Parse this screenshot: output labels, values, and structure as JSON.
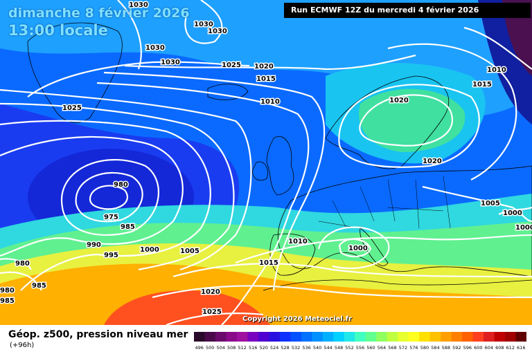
{
  "header": {
    "date": "dimanche 8 février 2026",
    "time": "13:00 locale",
    "run": "Run ECMWF 12Z du mercredi 4 février 2026"
  },
  "copyright": "Copyright 2026 Meteociel.fr",
  "legend": {
    "title": "Géop. z500, pression niveau mer",
    "subtitle": "(+96h)",
    "ticks": [
      "496",
      "500",
      "504",
      "508",
      "512",
      "516",
      "520",
      "524",
      "528",
      "532",
      "536",
      "540",
      "544",
      "548",
      "552",
      "556",
      "560",
      "564",
      "568",
      "572",
      "576",
      "580",
      "584",
      "588",
      "592",
      "596",
      "600",
      "604",
      "608",
      "612",
      "616"
    ],
    "colors": [
      "#2a0a2a",
      "#4a0a4a",
      "#6a0a6a",
      "#8a0a8a",
      "#a010a0",
      "#7a00c0",
      "#5000d0",
      "#2a10e0",
      "#1030ff",
      "#0050ff",
      "#0070ff",
      "#0090ff",
      "#00b0ff",
      "#00d0ff",
      "#20e8e8",
      "#40ffc0",
      "#60ff90",
      "#90ff60",
      "#c0ff40",
      "#e8ff30",
      "#ffff20",
      "#ffe000",
      "#ffc000",
      "#ffa000",
      "#ff8000",
      "#ff6000",
      "#ff4020",
      "#e02020",
      "#c00000",
      "#a00000",
      "#600000"
    ]
  },
  "map": {
    "isobars": [
      "1030",
      "1030",
      "1030",
      "1030",
      "1030",
      "1025",
      "1025",
      "1020",
      "1015",
      "1010",
      "1020",
      "1020",
      "1015",
      "1010",
      "980",
      "975",
      "985",
      "990",
      "995",
      "1000",
      "1005",
      "980",
      "985",
      "980",
      "985",
      "1010",
      "1015",
      "1000",
      "1005",
      "1000",
      "1000",
      "1020",
      "1025"
    ]
  }
}
